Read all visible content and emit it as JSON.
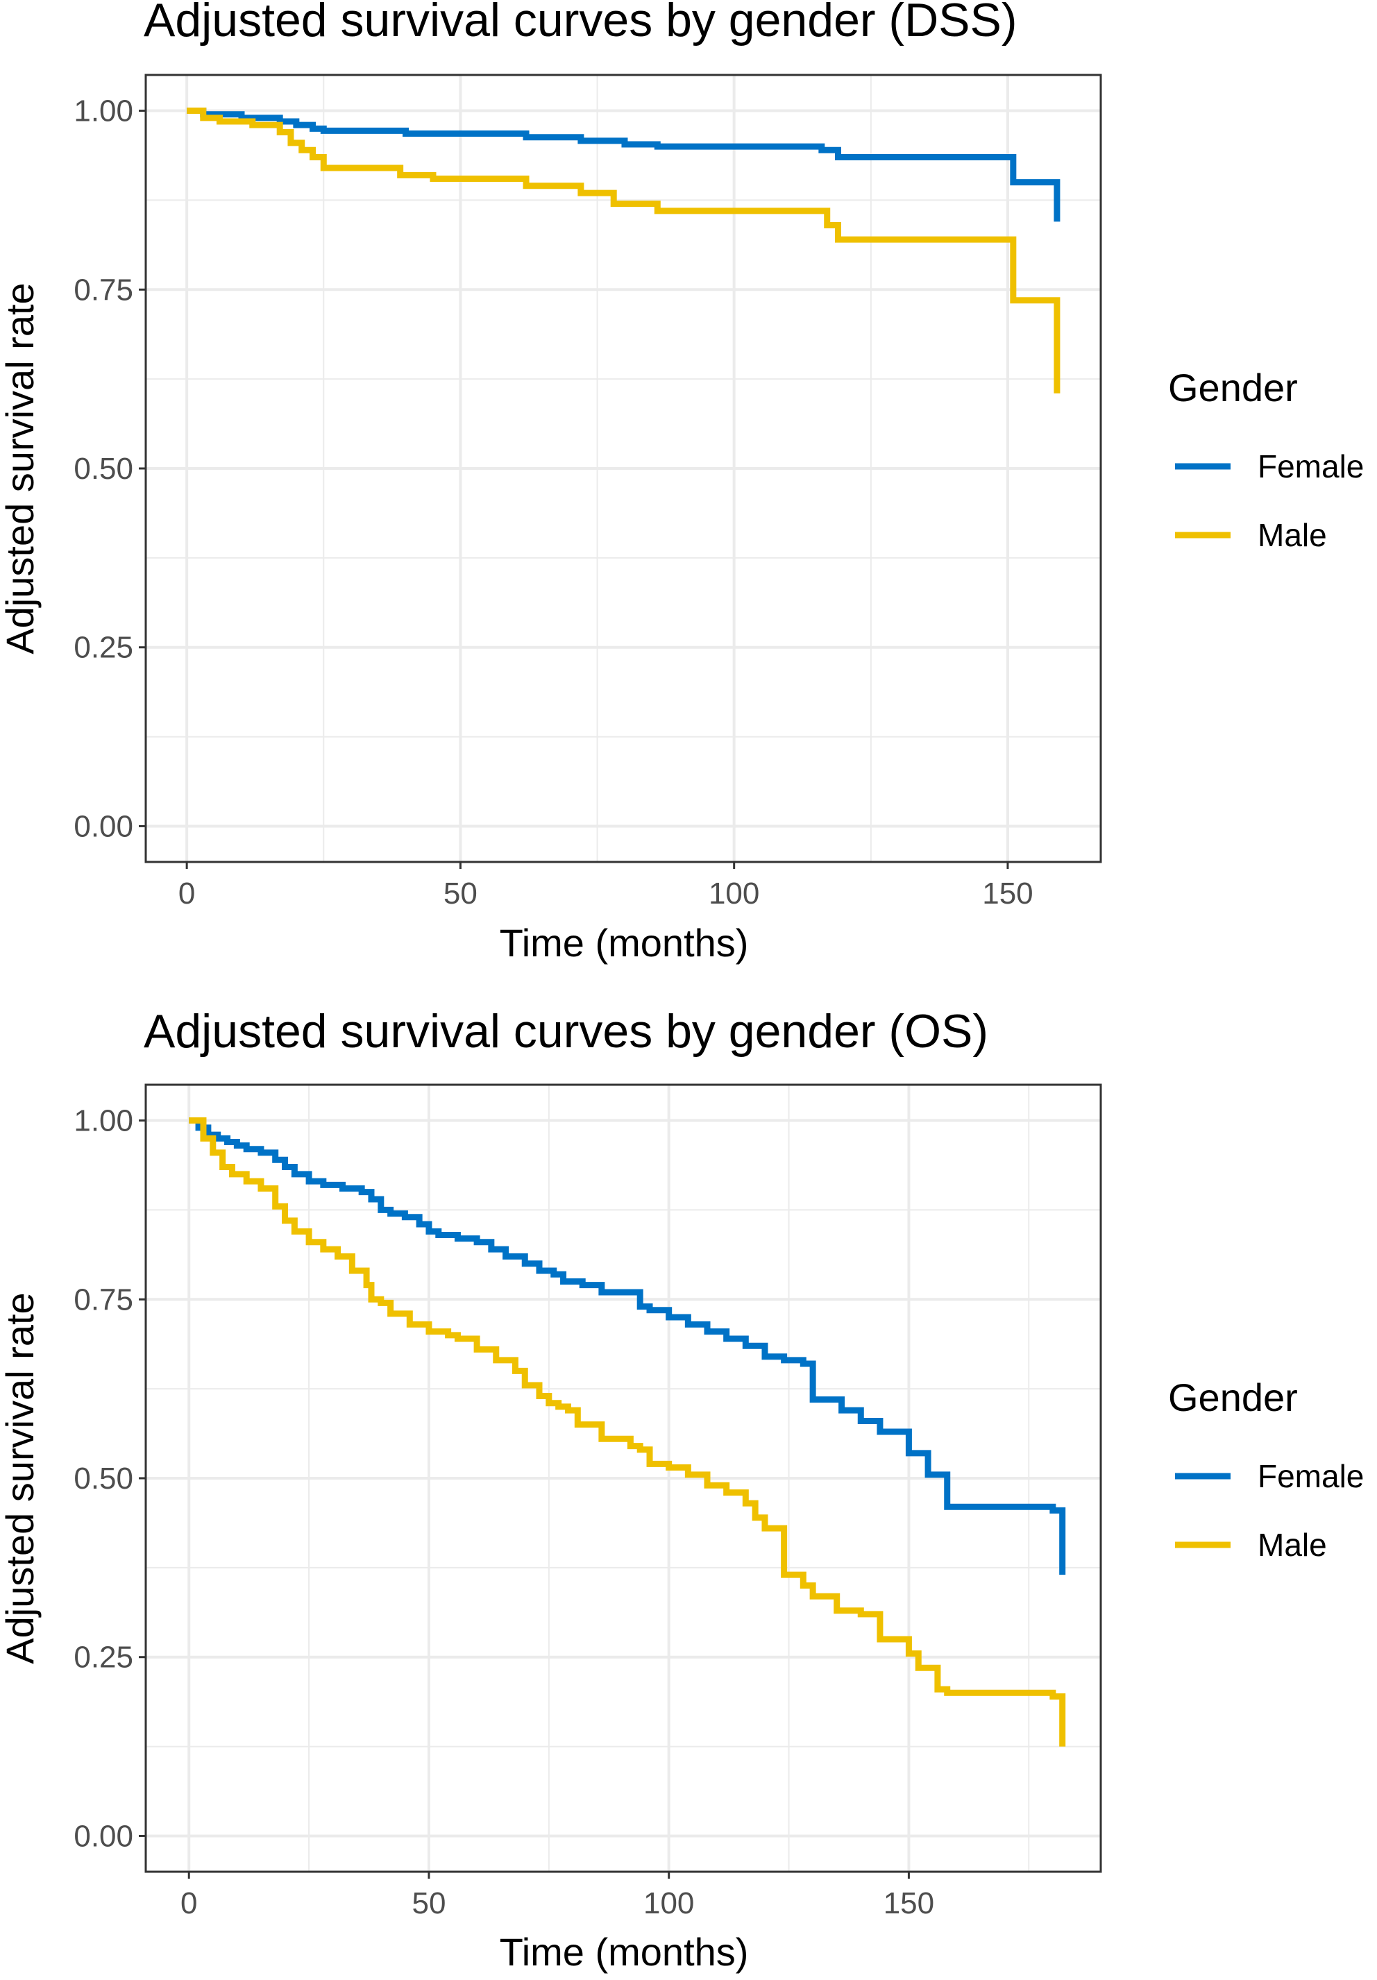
{
  "colors": {
    "female": "#0072C6",
    "male": "#EFC000",
    "grid": "#ebebeb",
    "border": "#333333"
  },
  "chart_data": [
    {
      "type": "line",
      "step": true,
      "title": "Adjusted survival curves by gender (DSS)",
      "xlabel": "Time (months)",
      "ylabel": "Adjusted survival rate",
      "xlim": [
        -7.5,
        167
      ],
      "ylim": [
        -0.05,
        1.05
      ],
      "xticks": [
        0,
        50,
        100,
        150
      ],
      "xtick_labels": [
        "0",
        "50",
        "100",
        "150"
      ],
      "xminor": [
        25,
        75,
        125
      ],
      "yticks": [
        0,
        0.25,
        0.5,
        0.75,
        1.0
      ],
      "ytick_labels": [
        "0.00",
        "0.25",
        "0.50",
        "0.75",
        "1.00"
      ],
      "yminor": [
        0.125,
        0.375,
        0.625,
        0.875
      ],
      "grid": true,
      "legend": {
        "title": "Gender",
        "placement": "right"
      },
      "series": [
        {
          "name": "Female",
          "color": "#0072C6",
          "x": [
            0,
            3,
            10,
            17,
            20,
            23,
            25,
            40,
            62,
            72,
            80,
            86,
            116,
            119,
            151,
            159
          ],
          "y": [
            1.0,
            0.995,
            0.99,
            0.985,
            0.98,
            0.975,
            0.972,
            0.968,
            0.963,
            0.958,
            0.953,
            0.95,
            0.945,
            0.935,
            0.9,
            0.845
          ]
        },
        {
          "name": "Male",
          "color": "#EFC000",
          "x": [
            0,
            3,
            6,
            12,
            17,
            19,
            21,
            23,
            25,
            39,
            45,
            62,
            72,
            78,
            86,
            117,
            119,
            151,
            159
          ],
          "y": [
            1.0,
            0.99,
            0.985,
            0.98,
            0.97,
            0.955,
            0.945,
            0.935,
            0.92,
            0.91,
            0.905,
            0.895,
            0.885,
            0.87,
            0.86,
            0.84,
            0.82,
            0.735,
            0.605
          ]
        }
      ]
    },
    {
      "type": "line",
      "step": true,
      "title": "Adjusted survival curves by gender (OS)",
      "xlabel": "Time (months)",
      "ylabel": "Adjusted survival rate",
      "xlim": [
        -9,
        190
      ],
      "ylim": [
        -0.05,
        1.05
      ],
      "xticks": [
        0,
        50,
        100,
        150
      ],
      "xtick_labels": [
        "0",
        "50",
        "100",
        "150"
      ],
      "xminor": [
        25,
        75,
        125,
        175
      ],
      "yticks": [
        0,
        0.25,
        0.5,
        0.75,
        1.0
      ],
      "ytick_labels": [
        "0.00",
        "0.25",
        "0.50",
        "0.75",
        "1.00"
      ],
      "yminor": [
        0.125,
        0.375,
        0.625,
        0.875
      ],
      "grid": true,
      "legend": {
        "title": "Gender",
        "placement": "right"
      },
      "series": [
        {
          "name": "Female",
          "color": "#0072C6",
          "x": [
            0,
            2,
            4,
            6,
            8,
            10,
            12,
            15,
            18,
            20,
            22,
            25,
            28,
            32,
            36,
            38,
            40,
            42,
            45,
            48,
            50,
            52,
            56,
            60,
            63,
            66,
            70,
            73,
            76,
            78,
            82,
            86,
            94,
            96,
            100,
            104,
            108,
            112,
            116,
            120,
            124,
            128,
            130,
            136,
            140,
            144,
            150,
            154,
            158,
            180,
            182
          ],
          "y": [
            1.0,
            0.99,
            0.98,
            0.975,
            0.97,
            0.965,
            0.96,
            0.955,
            0.945,
            0.935,
            0.925,
            0.915,
            0.91,
            0.905,
            0.9,
            0.89,
            0.875,
            0.87,
            0.865,
            0.855,
            0.845,
            0.84,
            0.835,
            0.83,
            0.82,
            0.81,
            0.8,
            0.79,
            0.785,
            0.775,
            0.77,
            0.76,
            0.74,
            0.735,
            0.725,
            0.715,
            0.705,
            0.695,
            0.685,
            0.67,
            0.665,
            0.66,
            0.61,
            0.595,
            0.58,
            0.565,
            0.535,
            0.505,
            0.46,
            0.455,
            0.365
          ]
        },
        {
          "name": "Male",
          "color": "#EFC000",
          "x": [
            0,
            3,
            5,
            7,
            9,
            12,
            15,
            18,
            20,
            22,
            25,
            28,
            31,
            34,
            37,
            38,
            40,
            42,
            46,
            50,
            54,
            56,
            60,
            64,
            68,
            70,
            73,
            75,
            77,
            79,
            81,
            86,
            92,
            94,
            96,
            100,
            104,
            108,
            112,
            116,
            118,
            120,
            124,
            128,
            130,
            135,
            140,
            144,
            150,
            152,
            156,
            158,
            180,
            182
          ],
          "y": [
            1.0,
            0.975,
            0.955,
            0.935,
            0.925,
            0.915,
            0.905,
            0.88,
            0.86,
            0.845,
            0.83,
            0.82,
            0.81,
            0.79,
            0.77,
            0.75,
            0.745,
            0.73,
            0.715,
            0.705,
            0.7,
            0.695,
            0.68,
            0.665,
            0.65,
            0.63,
            0.615,
            0.605,
            0.6,
            0.595,
            0.575,
            0.555,
            0.545,
            0.54,
            0.52,
            0.515,
            0.505,
            0.49,
            0.48,
            0.465,
            0.445,
            0.43,
            0.365,
            0.35,
            0.335,
            0.315,
            0.31,
            0.275,
            0.255,
            0.235,
            0.205,
            0.2,
            0.195,
            0.125
          ]
        }
      ]
    }
  ]
}
